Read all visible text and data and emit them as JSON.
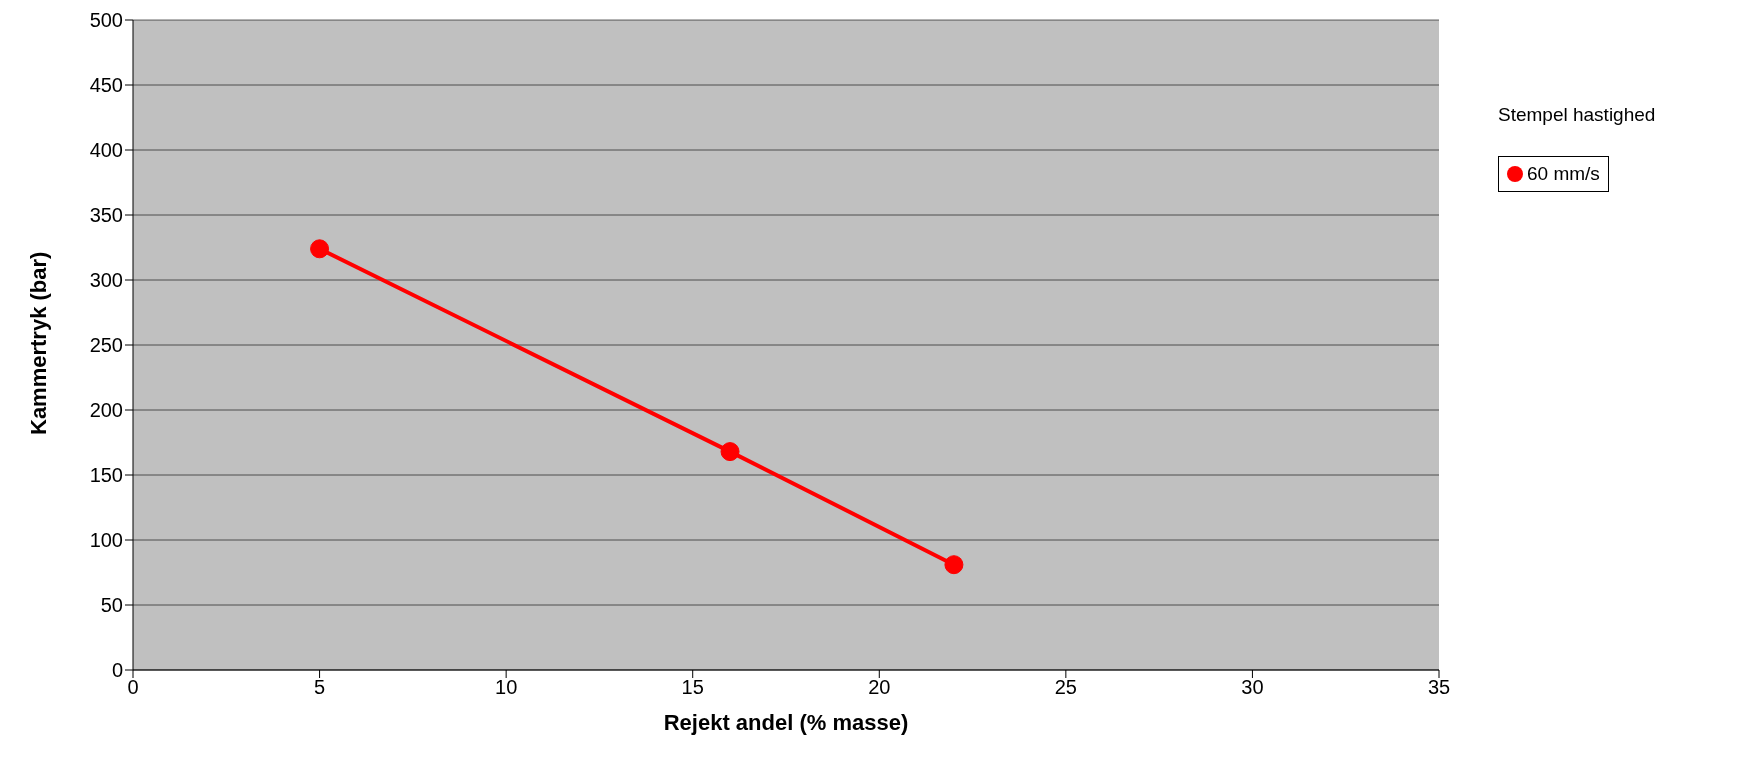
{
  "chart_data": {
    "type": "line",
    "xlabel": "Rejekt andel (% masse)",
    "ylabel": "Kammertryk (bar)",
    "legend_title": "Stempel hastighed",
    "x": [
      5,
      16,
      22
    ],
    "series": [
      {
        "name": "60 mm/s",
        "color": "#ff0000",
        "values": [
          324,
          168,
          81
        ]
      }
    ],
    "xlim": [
      0,
      35
    ],
    "xticks": [
      0,
      5,
      10,
      15,
      20,
      25,
      30,
      35
    ],
    "ylim": [
      0,
      500
    ],
    "yticks": [
      0,
      50,
      100,
      150,
      200,
      250,
      300,
      350,
      400,
      450,
      500
    ],
    "grid": "y",
    "legend": "right",
    "marker": "circle",
    "line_style": "solid"
  }
}
